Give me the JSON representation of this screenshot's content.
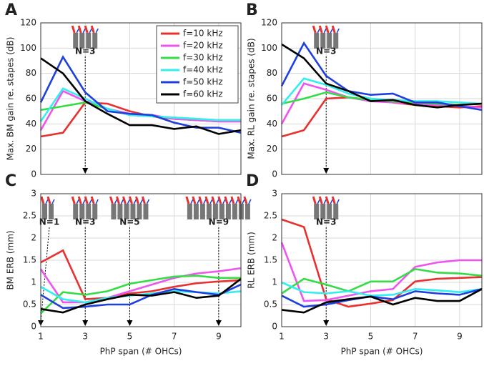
{
  "chart_data": [
    {
      "type": "line",
      "label": "A",
      "ylabel": "Max. BM gain re. stapes (dB)",
      "x": [
        1,
        2,
        3,
        4,
        5,
        6,
        7,
        8,
        9,
        10
      ],
      "xlim": [
        1,
        10
      ],
      "xticks": [
        1,
        3,
        5,
        7,
        9
      ],
      "ylim": [
        0,
        120
      ],
      "yticks": [
        0,
        20,
        40,
        60,
        80,
        100,
        120
      ],
      "grid": true,
      "legend": "upper right",
      "annotations": [
        {
          "text": "N=3",
          "x": 3
        }
      ],
      "series": [
        {
          "name": "f=10 kHz",
          "color": "#e8302f",
          "values": [
            30,
            33,
            57,
            56,
            50,
            46,
            44,
            43,
            42,
            42
          ]
        },
        {
          "name": "f=20 kHz",
          "color": "#ee55ee",
          "values": [
            35,
            66,
            58,
            52,
            48,
            47,
            44,
            43,
            42,
            42
          ]
        },
        {
          "name": "f=30 kHz",
          "color": "#33dd44",
          "values": [
            51,
            54,
            57,
            52,
            47,
            46,
            45,
            44,
            43,
            43
          ]
        },
        {
          "name": "f=40 kHz",
          "color": "#33eeee",
          "values": [
            42,
            68,
            60,
            52,
            47,
            46,
            45,
            44,
            43,
            43
          ]
        },
        {
          "name": "f=50 kHz",
          "color": "#1f3fdd",
          "values": [
            57,
            93,
            65,
            50,
            48,
            47,
            41,
            37,
            37,
            33
          ]
        },
        {
          "name": "f=60 kHz",
          "color": "#000000",
          "values": [
            92,
            80,
            58,
            48,
            39,
            39,
            36,
            38,
            32,
            35
          ]
        }
      ]
    },
    {
      "type": "line",
      "label": "B",
      "ylabel": "Max. RL gain re. stapes (dB)",
      "x": [
        1,
        2,
        3,
        4,
        5,
        6,
        7,
        8,
        9,
        10
      ],
      "xlim": [
        1,
        10
      ],
      "xticks": [
        1,
        3,
        5,
        7,
        9
      ],
      "ylim": [
        0,
        120
      ],
      "yticks": [
        0,
        20,
        40,
        60,
        80,
        100,
        120
      ],
      "grid": true,
      "annotations": [
        {
          "text": "N=3",
          "x": 3
        }
      ],
      "series": [
        {
          "color": "#e8302f",
          "values": [
            30,
            35,
            60,
            61,
            59,
            57,
            55,
            54,
            53,
            54
          ]
        },
        {
          "color": "#ee55ee",
          "values": [
            40,
            72,
            67,
            61,
            58,
            57,
            56,
            55,
            54,
            53
          ]
        },
        {
          "color": "#33dd44",
          "values": [
            56,
            60,
            65,
            61,
            59,
            58,
            57,
            56,
            55,
            56
          ]
        },
        {
          "color": "#33eeee",
          "values": [
            55,
            76,
            71,
            64,
            60,
            59,
            58,
            58,
            57,
            56
          ]
        },
        {
          "color": "#1f3fdd",
          "values": [
            70,
            104,
            78,
            66,
            63,
            64,
            57,
            57,
            54,
            51
          ]
        },
        {
          "color": "#000000",
          "values": [
            103,
            92,
            72,
            66,
            58,
            59,
            55,
            53,
            55,
            56
          ]
        }
      ]
    },
    {
      "type": "line",
      "label": "C",
      "ylabel": "BM ERB (mm)",
      "xlabel": "PhP span (# OHCs)",
      "x": [
        1,
        2,
        3,
        4,
        5,
        6,
        7,
        8,
        9,
        10
      ],
      "xlim": [
        1,
        10
      ],
      "xticks": [
        1,
        3,
        5,
        7,
        9
      ],
      "ylim": [
        0,
        3
      ],
      "yticks": [
        0,
        0.5,
        1,
        1.5,
        2,
        2.5,
        3
      ],
      "grid": true,
      "annotations": [
        {
          "text": "N=1",
          "x": 1
        },
        {
          "text": "N=3",
          "x": 3
        },
        {
          "text": "N=5",
          "x": 5
        },
        {
          "text": "N=9",
          "x": 9
        }
      ],
      "series": [
        {
          "color": "#e8302f",
          "values": [
            1.45,
            1.72,
            0.62,
            0.65,
            0.75,
            0.8,
            0.9,
            0.98,
            1.02,
            1.05
          ]
        },
        {
          "color": "#ee55ee",
          "values": [
            1.3,
            0.55,
            0.55,
            0.65,
            0.8,
            0.95,
            1.1,
            1.2,
            1.25,
            1.32
          ]
        },
        {
          "color": "#33dd44",
          "values": [
            0.3,
            0.78,
            0.72,
            0.8,
            0.97,
            1.05,
            1.13,
            1.15,
            1.1,
            1.1
          ]
        },
        {
          "color": "#33eeee",
          "values": [
            0.9,
            0.62,
            0.55,
            0.65,
            0.7,
            0.75,
            0.8,
            0.78,
            0.75,
            0.8
          ]
        },
        {
          "color": "#1f3fdd",
          "values": [
            0.72,
            0.42,
            0.45,
            0.5,
            0.5,
            0.72,
            0.85,
            0.78,
            0.72,
            0.95
          ]
        },
        {
          "color": "#000000",
          "values": [
            0.4,
            0.32,
            0.5,
            0.62,
            0.72,
            0.7,
            0.78,
            0.65,
            0.7,
            1.08
          ]
        }
      ]
    },
    {
      "type": "line",
      "label": "D",
      "ylabel": "RL ERB (mm)",
      "xlabel": "PhP span (# OHCs)",
      "x": [
        1,
        2,
        3,
        4,
        5,
        6,
        7,
        8,
        9,
        10
      ],
      "xlim": [
        1,
        10
      ],
      "xticks": [
        1,
        3,
        5,
        7,
        9
      ],
      "ylim": [
        0,
        3
      ],
      "yticks": [
        0,
        0.5,
        1,
        1.5,
        2,
        2.5,
        3
      ],
      "grid": true,
      "annotations": [
        {
          "text": "N=3",
          "x": 3
        }
      ],
      "series": [
        {
          "color": "#e8302f",
          "values": [
            2.42,
            2.25,
            0.62,
            0.45,
            0.52,
            0.6,
            1.02,
            1.08,
            1.1,
            1.12
          ]
        },
        {
          "color": "#ee55ee",
          "values": [
            1.9,
            0.58,
            0.6,
            0.7,
            0.8,
            0.85,
            1.35,
            1.45,
            1.5,
            1.5
          ]
        },
        {
          "color": "#33dd44",
          "values": [
            0.75,
            1.08,
            0.95,
            0.8,
            1.02,
            1.02,
            1.3,
            1.22,
            1.2,
            1.15
          ]
        },
        {
          "color": "#33eeee",
          "values": [
            1.0,
            0.78,
            0.75,
            0.8,
            0.7,
            0.72,
            0.85,
            0.82,
            0.78,
            0.85
          ]
        },
        {
          "color": "#1f3fdd",
          "values": [
            0.7,
            0.45,
            0.5,
            0.6,
            0.68,
            0.62,
            0.8,
            0.75,
            0.72,
            0.85
          ]
        },
        {
          "color": "#000000",
          "values": [
            0.38,
            0.32,
            0.55,
            0.62,
            0.68,
            0.5,
            0.65,
            0.58,
            0.58,
            0.85
          ]
        }
      ]
    }
  ]
}
